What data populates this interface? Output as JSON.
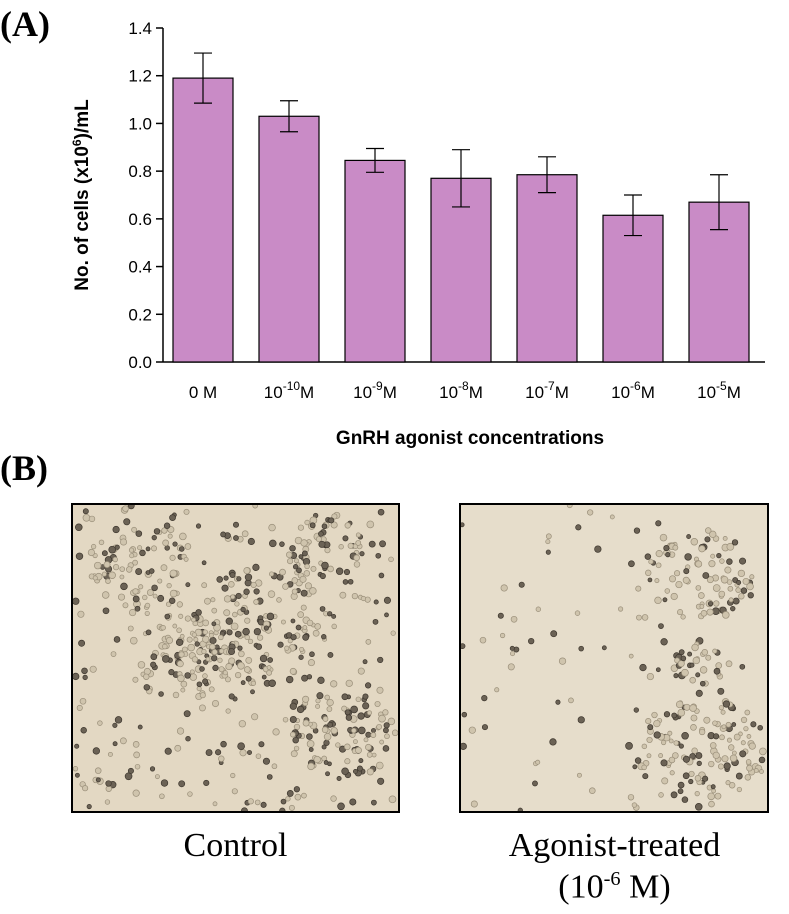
{
  "panel_a_label": "(A)",
  "panel_b_label": "(B)",
  "chart_data": {
    "type": "bar",
    "categories": [
      "0 M",
      "10-10M",
      "10-9M",
      "10-8M",
      "10-7M",
      "10-6M",
      "10-5M"
    ],
    "category_labels": [
      {
        "base": "0 M",
        "exp": "",
        "unit": ""
      },
      {
        "base": "10",
        "exp": "-10",
        "unit": "M"
      },
      {
        "base": "10",
        "exp": "-9",
        "unit": "M"
      },
      {
        "base": "10",
        "exp": "-8",
        "unit": "M"
      },
      {
        "base": "10",
        "exp": "-7",
        "unit": "M"
      },
      {
        "base": "10",
        "exp": "-6",
        "unit": "M"
      },
      {
        "base": "10",
        "exp": "-5",
        "unit": "M"
      }
    ],
    "values": [
      1.19,
      1.03,
      0.845,
      0.77,
      0.785,
      0.615,
      0.67
    ],
    "errors": [
      0.105,
      0.065,
      0.05,
      0.12,
      0.075,
      0.085,
      0.115
    ],
    "xlabel": "GnRH agonist concentrations",
    "ylabel": "No. of cells (x10⁶)/mL",
    "ylabel_parts": {
      "pre": "No. of cells (x10",
      "sup": "6",
      "post": ")/mL"
    },
    "ylim": [
      0,
      1.4
    ],
    "yticks": [
      "0.0",
      "0.2",
      "0.4",
      "0.6",
      "0.8",
      "1.0",
      "1.2",
      "1.4"
    ],
    "bar_color": "#c98bc6",
    "grid": false
  },
  "images": [
    {
      "caption": "Control",
      "bg": "#e3d8c3"
    },
    {
      "caption_main": "Agonist-treated",
      "caption_sub_base": "(10",
      "caption_sub_exp": "-6",
      "caption_sub_post": " M)",
      "bg": "#e6ddcb"
    }
  ]
}
